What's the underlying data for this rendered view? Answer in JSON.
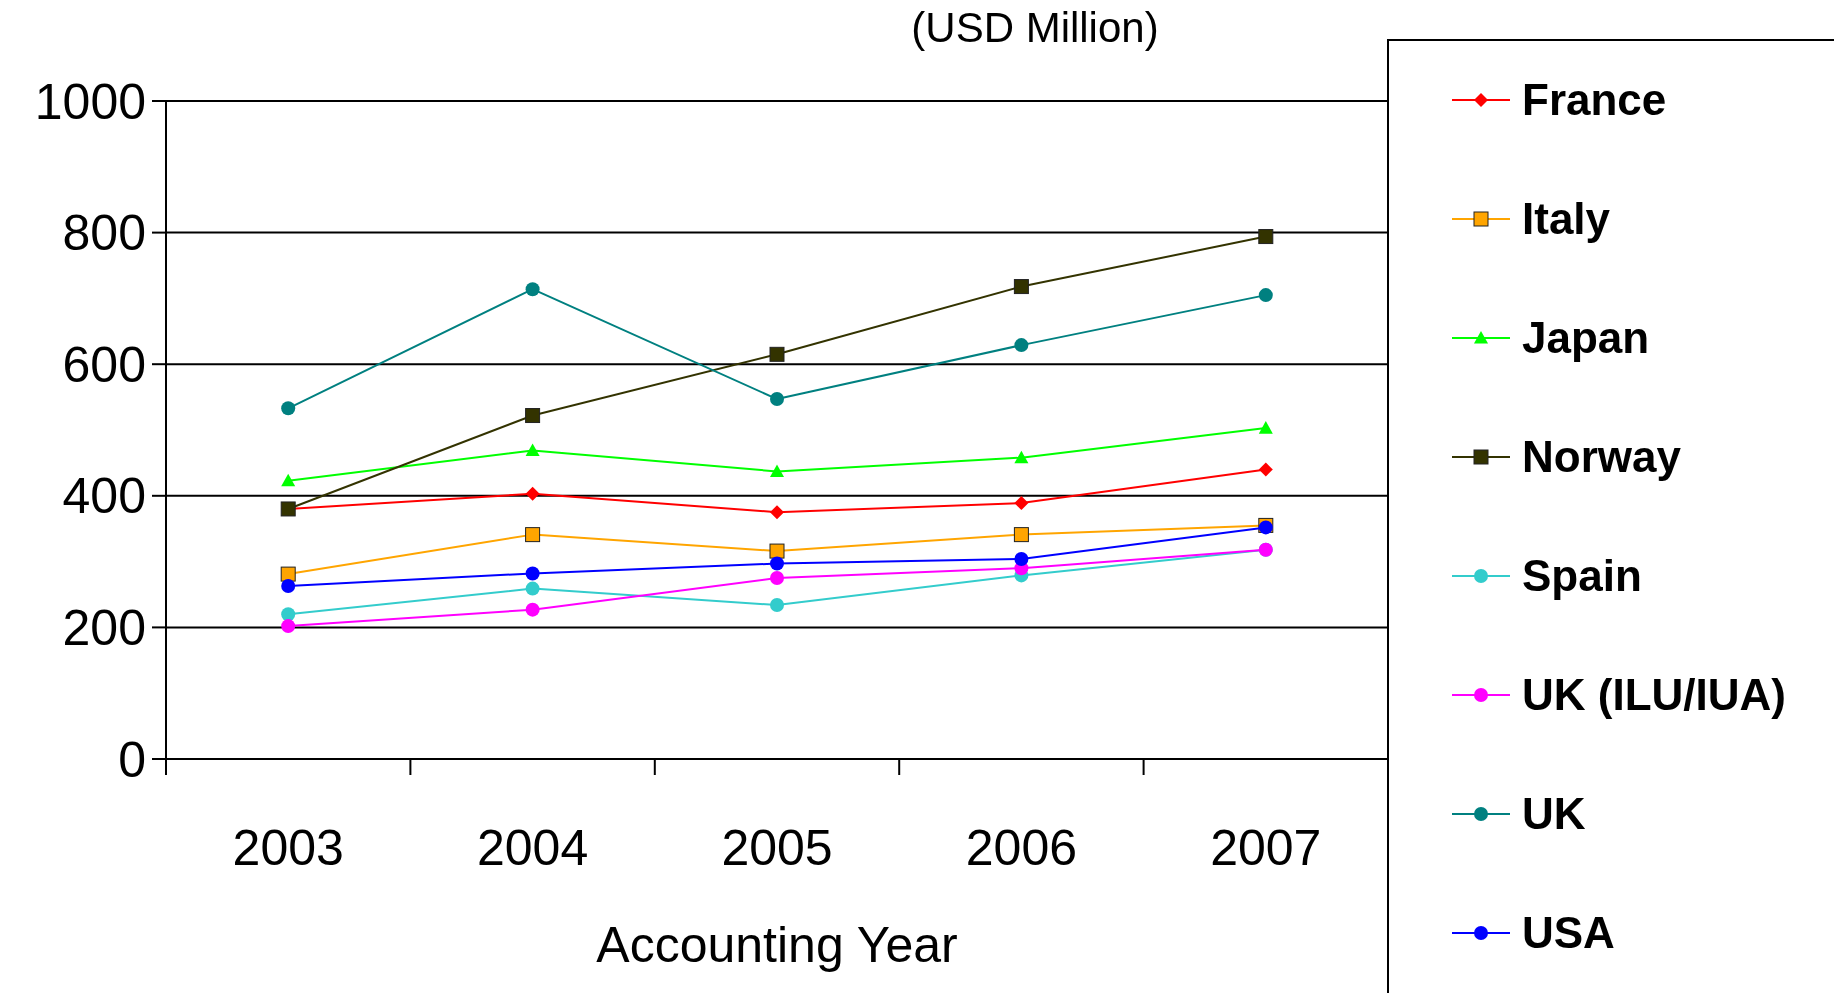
{
  "chart_data": {
    "type": "line",
    "title": "(USD Million)",
    "xlabel": "Accounting Year",
    "categories": [
      "2003",
      "2004",
      "2005",
      "2006",
      "2007"
    ],
    "ylim": [
      0,
      1000
    ],
    "yticks": [
      0,
      200,
      400,
      600,
      800,
      1000
    ],
    "grid": "y",
    "legend": "right",
    "series": [
      {
        "name": "France",
        "color": "#ff0000",
        "marker": "diamond",
        "values": [
          380,
          403,
          375,
          389,
          440
        ]
      },
      {
        "name": "Italy",
        "color": "#ffa500",
        "marker": "square",
        "values": [
          281,
          341,
          316,
          341,
          355
        ]
      },
      {
        "name": "Japan",
        "color": "#00ff00",
        "marker": "triangle",
        "values": [
          423,
          469,
          437,
          458,
          503
        ]
      },
      {
        "name": "Norway",
        "color": "#333300",
        "marker": "square",
        "values": [
          380,
          522,
          615,
          718,
          794
        ]
      },
      {
        "name": "Spain",
        "color": "#33cccc",
        "marker": "circle",
        "values": [
          220,
          259,
          234,
          279,
          318
        ]
      },
      {
        "name": "UK (ILU/IUA)",
        "color": "#ff00ff",
        "marker": "circle",
        "values": [
          202,
          227,
          275,
          290,
          318
        ]
      },
      {
        "name": "UK",
        "color": "#008080",
        "marker": "circle",
        "values": [
          533,
          714,
          547,
          629,
          705
        ]
      },
      {
        "name": "USA",
        "color": "#0000ff",
        "marker": "circle",
        "values": [
          263,
          282,
          297,
          304,
          352
        ]
      }
    ]
  }
}
